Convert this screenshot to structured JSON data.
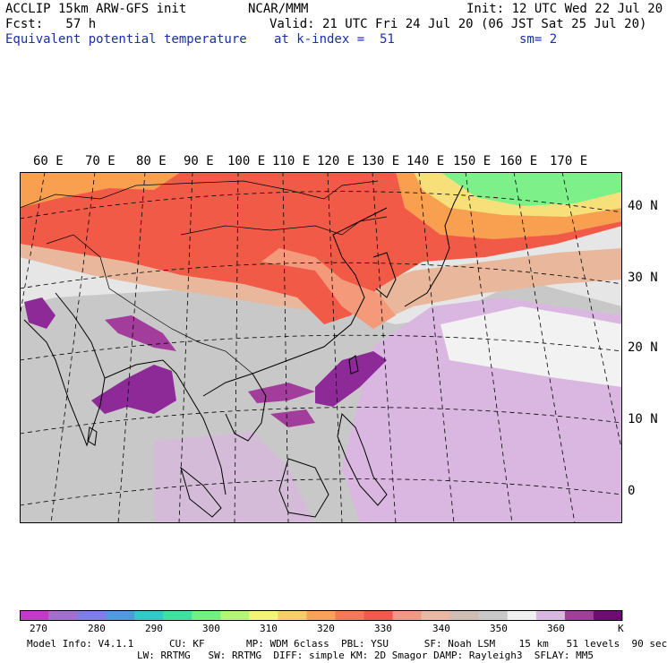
{
  "header": {
    "line1_left": "ACCLIP 15km ARW-GFS init",
    "line1_mid": "NCAR/MMM",
    "line1_right": "Init: 12 UTC Wed 22 Jul 20",
    "line2_left": "Fcst:   57 h",
    "line2_right": "Valid: 21 UTC Fri 24 Jul 20 (06 JST Sat 25 Jul 20)",
    "line3_left": "Equivalent potential temperature",
    "line3_mid": "at k-index =  51",
    "line3_right": "sm= 2"
  },
  "map": {
    "lon_labels": [
      "60 E",
      "70 E",
      "80 E",
      "90 E",
      "100 E",
      "110 E",
      "120 E",
      "130 E",
      "140 E",
      "150 E",
      "160 E",
      "170 E"
    ],
    "lat_labels": [
      "40 N",
      "30 N",
      "20 N",
      "10 N",
      "0"
    ],
    "colors": {
      "purple_dark": "#8e2a98",
      "lavender": "#d9b7e0",
      "grey_light": "#e6e6e6",
      "grey": "#c8c8c8",
      "tan": "#e8b79c",
      "salmon": "#f49a7a",
      "red": "#f25a48",
      "orange": "#f8a050",
      "yellow": "#f7e07a",
      "green": "#7ef08a"
    }
  },
  "colorbar": {
    "unit": "K",
    "ticks": [
      "270",
      "280",
      "290",
      "300",
      "310",
      "320",
      "330",
      "340",
      "350",
      "360"
    ],
    "colors": [
      "#c23bc6",
      "#a06fd0",
      "#7f7ee8",
      "#4f9be0",
      "#34c8c8",
      "#42e0a0",
      "#74f07c",
      "#b4f47a",
      "#f4f47a",
      "#f6cf6c",
      "#f6a25c",
      "#f37a56",
      "#f05a48",
      "#f09a86",
      "#e9b9a4",
      "#cdbdb2",
      "#c8c8c8",
      "#f0f0f0",
      "#d9b7e0",
      "#a23d9c",
      "#700a74"
    ]
  },
  "footer": {
    "line1": "Model Info: V4.1.1      CU: KF       MP: WDM 6class  PBL: YSU      SF: Noah LSM    15 km   51 levels  90 sec",
    "line2": "LW: RRTMG   SW: RRTMG  DIFF: simple KM: 2D Smagor DAMP: Rayleigh3  SFLAY: MM5"
  }
}
